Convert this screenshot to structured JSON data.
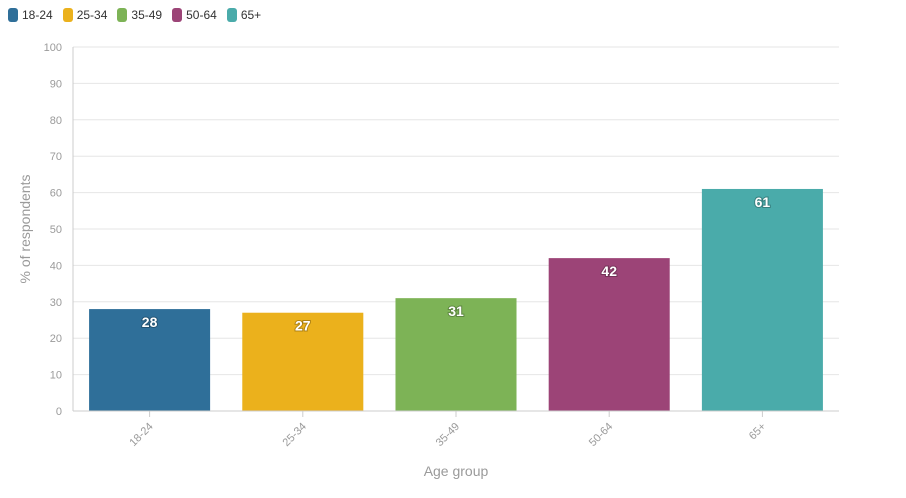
{
  "chart_data": {
    "type": "bar",
    "categories": [
      "18-24",
      "25-34",
      "35-49",
      "50-64",
      "65+"
    ],
    "values": [
      28,
      27,
      31,
      42,
      61
    ],
    "colors": [
      "#2f6f99",
      "#ebb11c",
      "#7db356",
      "#9c4477",
      "#4aabaa"
    ],
    "title": "",
    "xlabel": "Age group",
    "ylabel": "% of respondents",
    "ylim": [
      0,
      100
    ],
    "yticks": [
      0,
      10,
      20,
      30,
      40,
      50,
      60,
      70,
      80,
      90,
      100
    ],
    "grid": true,
    "legend_position": "top-left",
    "data_labels": true
  }
}
